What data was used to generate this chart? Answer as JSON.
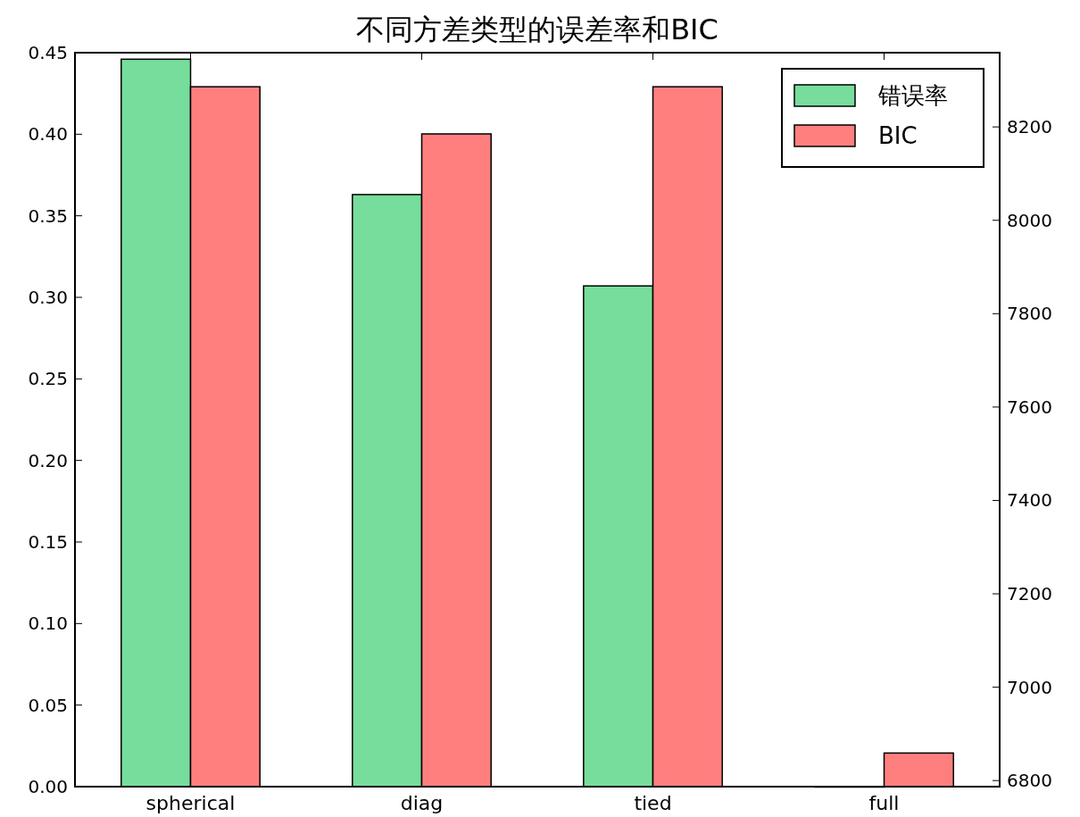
{
  "chart_data": {
    "type": "bar",
    "title": "不同方差类型的误差率和BIC",
    "categories": [
      "spherical",
      "diag",
      "tied",
      "full"
    ],
    "series": [
      {
        "name": "错误率",
        "color": "#77dd9c",
        "values": [
          0.446,
          0.363,
          0.307,
          0
        ]
      },
      {
        "name": "BIC",
        "color": "#ff7f7f",
        "axis": "y2",
        "values": [
          8286,
          8185,
          8286,
          6859
        ]
      }
    ],
    "ylim": [
      0,
      0.45
    ],
    "yticks": [
      {
        "value": 0,
        "label": "0.00"
      },
      {
        "value": 0.05,
        "label": "0.05"
      },
      {
        "value": 0.1,
        "label": "0.10"
      },
      {
        "value": 0.15,
        "label": "0.15"
      },
      {
        "value": 0.2,
        "label": "0.20"
      },
      {
        "value": 0.25,
        "label": "0.25"
      },
      {
        "value": 0.3,
        "label": "0.30"
      },
      {
        "value": 0.35,
        "label": "0.35"
      },
      {
        "value": 0.4,
        "label": "0.40"
      },
      {
        "value": 0.45,
        "label": "0.45"
      }
    ],
    "y2lim": [
      6787,
      8359
    ],
    "y2ticks": [
      6800,
      7000,
      7200,
      7400,
      7600,
      7800,
      8000,
      8200
    ],
    "legend": "top right"
  }
}
